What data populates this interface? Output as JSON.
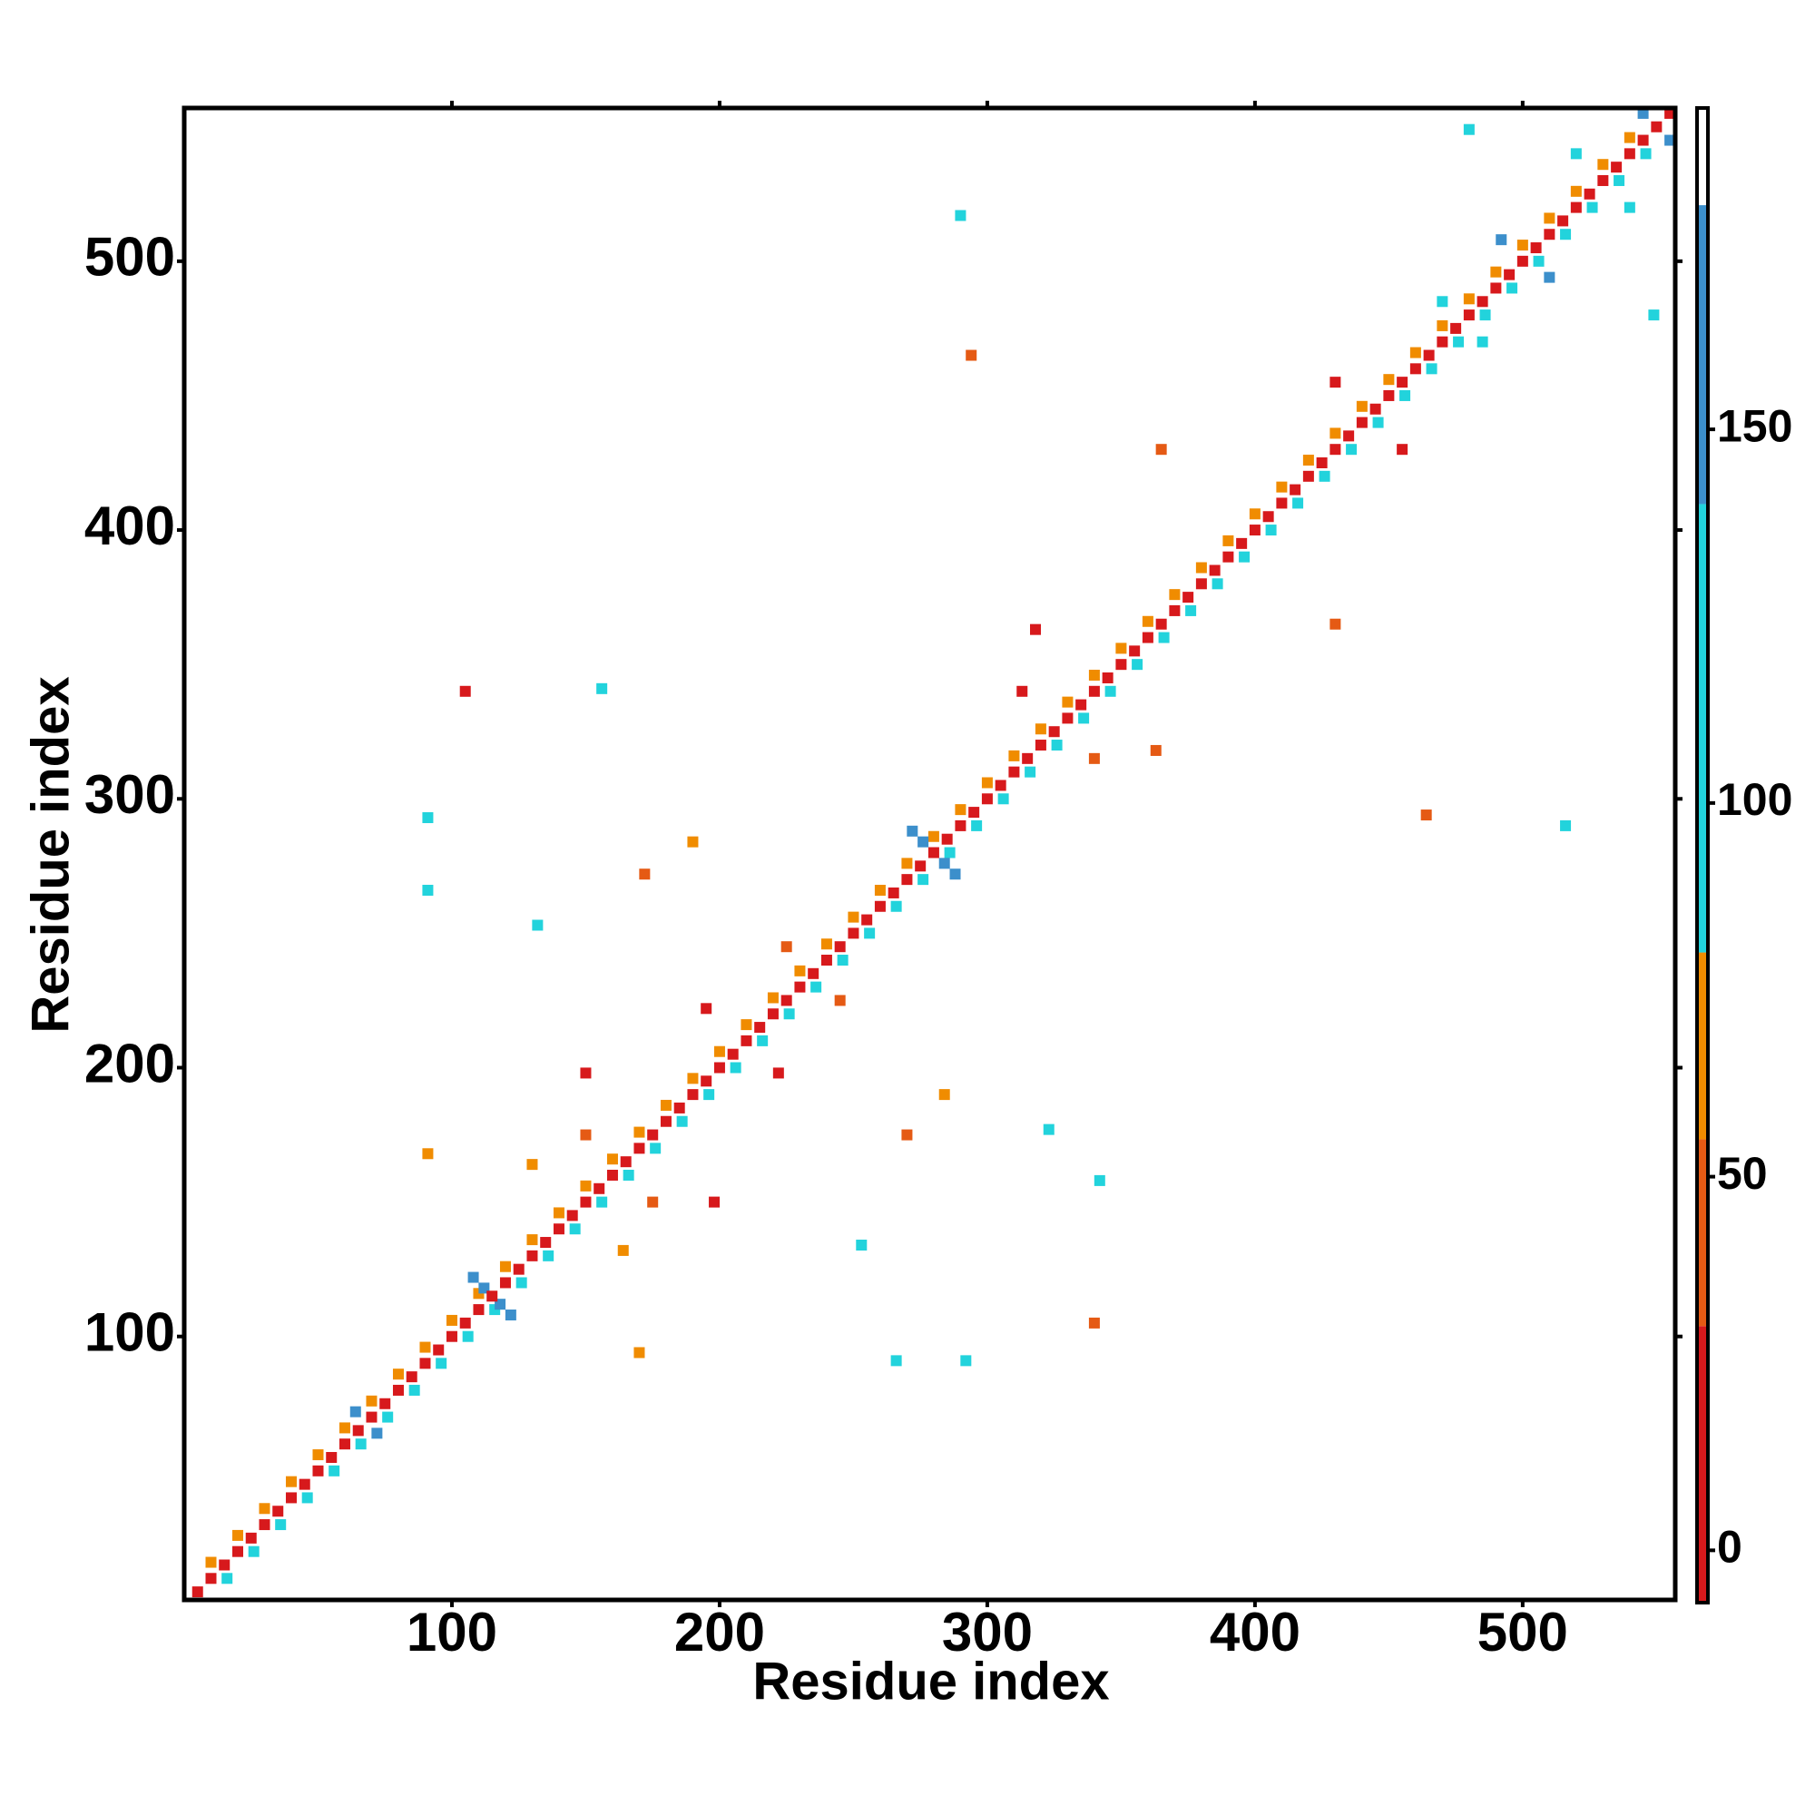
{
  "chart_data": {
    "type": "heatmap",
    "x_label": "Residue index",
    "y_label": "Residue index",
    "xlim": [
      0,
      557
    ],
    "ylim": [
      2,
      557
    ],
    "xticks": [
      100,
      200,
      300,
      400,
      500
    ],
    "yticks": [
      100,
      200,
      300,
      400,
      500
    ],
    "colorbar": {
      "lim": [
        -7,
        193
      ],
      "ticks": [
        0,
        50,
        100,
        150
      ],
      "bounds": [
        -7,
        30,
        55,
        80,
        140,
        180,
        193
      ],
      "colors": [
        "#d7191c",
        "#e55a14",
        "#f08c00",
        "#22d3dc",
        "#3c8fcb",
        "#ffffff"
      ]
    },
    "layers": [
      {
        "x": [
          10,
          20,
          30,
          40,
          50,
          60,
          70,
          80,
          90,
          100,
          110,
          120,
          130,
          140,
          150,
          160,
          170,
          180,
          190,
          200,
          210,
          220,
          230,
          240,
          250,
          260,
          270,
          280,
          290,
          300,
          310,
          320,
          330,
          340,
          350,
          360,
          370,
          380,
          390,
          400,
          410,
          420,
          430,
          440,
          450,
          460,
          470,
          480,
          490,
          500,
          510,
          520,
          530,
          540
        ],
        "y": [
          16,
          26,
          36,
          46,
          56,
          66,
          76,
          86,
          96,
          106,
          116,
          126,
          136,
          146,
          156,
          166,
          176,
          186,
          196,
          206,
          216,
          226,
          236,
          246,
          256,
          266,
          276,
          286,
          296,
          306,
          316,
          326,
          336,
          346,
          356,
          366,
          376,
          386,
          396,
          406,
          416,
          426,
          436,
          446,
          456,
          466,
          476,
          486,
          496,
          506,
          516,
          526,
          536,
          546
        ],
        "values": [
          60,
          60,
          60,
          60,
          60,
          60,
          60,
          60,
          60,
          60,
          60,
          60,
          60,
          60,
          60,
          60,
          60,
          60,
          60,
          60,
          60,
          60,
          60,
          60,
          60,
          60,
          60,
          60,
          60,
          60,
          60,
          60,
          60,
          60,
          60,
          60,
          60,
          60,
          60,
          60,
          60,
          60,
          60,
          60,
          60,
          60,
          60,
          60,
          60,
          60,
          60,
          60,
          60,
          60
        ]
      },
      {
        "x": [
          16,
          26,
          36,
          46,
          56,
          66,
          76,
          86,
          96,
          106,
          116,
          126,
          136,
          146,
          156,
          166,
          176,
          186,
          196,
          206,
          216,
          226,
          236,
          246,
          256,
          266,
          276,
          286,
          296,
          306,
          316,
          326,
          336,
          346,
          356,
          366,
          376,
          386,
          396,
          406,
          416,
          426,
          436,
          446,
          456,
          466,
          476,
          486,
          496,
          506,
          516,
          526,
          536,
          546
        ],
        "y": [
          10,
          20,
          30,
          40,
          50,
          60,
          70,
          80,
          90,
          100,
          110,
          120,
          130,
          140,
          150,
          160,
          170,
          180,
          190,
          200,
          210,
          220,
          230,
          240,
          250,
          260,
          270,
          280,
          290,
          300,
          310,
          320,
          330,
          340,
          350,
          360,
          370,
          380,
          390,
          400,
          410,
          420,
          430,
          440,
          450,
          460,
          470,
          480,
          490,
          500,
          510,
          520,
          530,
          540
        ],
        "values": [
          95,
          95,
          95,
          95,
          95,
          95,
          95,
          95,
          95,
          95,
          95,
          95,
          95,
          95,
          95,
          95,
          95,
          95,
          95,
          95,
          95,
          95,
          95,
          95,
          95,
          95,
          95,
          95,
          95,
          95,
          95,
          95,
          95,
          95,
          95,
          95,
          95,
          95,
          95,
          95,
          95,
          95,
          95,
          95,
          95,
          95,
          95,
          95,
          95,
          95,
          95,
          95,
          95,
          95
        ]
      },
      {
        "x": [
          108,
          112,
          118,
          122,
          272,
          276,
          284,
          288,
          64,
          72,
          492,
          510,
          545,
          555,
          105,
          150,
          195,
          150,
          175,
          198,
          222,
          225,
          245,
          172,
          270,
          313,
          340,
          318,
          363,
          365,
          430,
          430,
          455,
          340,
          290,
          516,
          132,
          253,
          470,
          485,
          480,
          549,
          520,
          540,
          91,
          292,
          266,
          91,
          156,
          342,
          323,
          91,
          170,
          130,
          164,
          284,
          190,
          294,
          464
        ],
        "y": [
          122,
          118,
          112,
          108,
          288,
          284,
          276,
          272,
          72,
          64,
          508,
          494,
          555,
          545,
          340,
          198,
          222,
          175,
          150,
          150,
          198,
          245,
          225,
          272,
          175,
          340,
          315,
          363,
          318,
          430,
          365,
          455,
          430,
          105,
          517,
          290,
          253,
          134,
          485,
          470,
          549,
          480,
          540,
          520,
          293,
          91,
          91,
          266,
          341,
          158,
          177,
          168,
          94,
          164,
          132,
          190,
          284,
          465,
          294
        ],
        "values": [
          160,
          160,
          160,
          160,
          160,
          160,
          160,
          160,
          160,
          160,
          160,
          160,
          160,
          160,
          20,
          10,
          10,
          40,
          40,
          10,
          10,
          40,
          40,
          40,
          40,
          15,
          40,
          10,
          40,
          30,
          30,
          10,
          20,
          40,
          100,
          100,
          100,
          100,
          100,
          100,
          100,
          100,
          120,
          120,
          100,
          100,
          100,
          100,
          100,
          100,
          100,
          60,
          60,
          60,
          60,
          60,
          60,
          40,
          40
        ]
      },
      {
        "x": [
          5,
          10,
          15,
          20,
          25,
          30,
          35,
          40,
          45,
          50,
          55,
          60,
          65,
          70,
          75,
          80,
          85,
          90,
          95,
          100,
          105,
          110,
          115,
          120,
          125,
          130,
          135,
          140,
          145,
          150,
          155,
          160,
          165,
          170,
          175,
          180,
          185,
          190,
          195,
          200,
          205,
          210,
          215,
          220,
          225,
          230,
          235,
          240,
          245,
          250,
          255,
          260,
          265,
          270,
          275,
          280,
          285,
          290,
          295,
          300,
          305,
          310,
          315,
          320,
          325,
          330,
          335,
          340,
          345,
          350,
          355,
          360,
          365,
          370,
          375,
          380,
          385,
          390,
          395,
          400,
          405,
          410,
          415,
          420,
          425,
          430,
          435,
          440,
          445,
          450,
          455,
          460,
          465,
          470,
          475,
          480,
          485,
          490,
          495,
          500,
          505,
          510,
          515,
          520,
          525,
          530,
          535,
          540,
          545,
          550,
          555
        ],
        "y": [
          5,
          10,
          15,
          20,
          25,
          30,
          35,
          40,
          45,
          50,
          55,
          60,
          65,
          70,
          75,
          80,
          85,
          90,
          95,
          100,
          105,
          110,
          115,
          120,
          125,
          130,
          135,
          140,
          145,
          150,
          155,
          160,
          165,
          170,
          175,
          180,
          185,
          190,
          195,
          200,
          205,
          210,
          215,
          220,
          225,
          230,
          235,
          240,
          245,
          250,
          255,
          260,
          265,
          270,
          275,
          280,
          285,
          290,
          295,
          300,
          305,
          310,
          315,
          320,
          325,
          330,
          335,
          340,
          345,
          350,
          355,
          360,
          365,
          370,
          375,
          380,
          385,
          390,
          395,
          400,
          405,
          410,
          415,
          420,
          425,
          430,
          435,
          440,
          445,
          450,
          455,
          460,
          465,
          470,
          475,
          480,
          485,
          490,
          495,
          500,
          505,
          510,
          515,
          520,
          525,
          530,
          535,
          540,
          545,
          550,
          555
        ],
        "values": [
          5,
          5,
          5,
          5,
          5,
          5,
          5,
          5,
          5,
          5,
          5,
          5,
          5,
          5,
          5,
          5,
          5,
          5,
          5,
          5,
          5,
          5,
          5,
          5,
          5,
          5,
          5,
          5,
          5,
          5,
          5,
          5,
          5,
          5,
          5,
          5,
          5,
          5,
          5,
          5,
          5,
          5,
          5,
          5,
          5,
          5,
          5,
          5,
          5,
          5,
          5,
          5,
          5,
          5,
          5,
          5,
          5,
          5,
          5,
          5,
          5,
          5,
          5,
          5,
          5,
          5,
          5,
          5,
          5,
          5,
          5,
          5,
          5,
          5,
          5,
          5,
          5,
          5,
          5,
          5,
          5,
          5,
          5,
          5,
          5,
          5,
          5,
          5,
          5,
          5,
          5,
          5,
          5,
          5,
          5,
          5,
          5,
          5,
          5,
          5,
          5,
          5,
          5,
          5,
          5,
          5,
          5,
          5,
          5,
          5,
          5
        ]
      }
    ]
  }
}
